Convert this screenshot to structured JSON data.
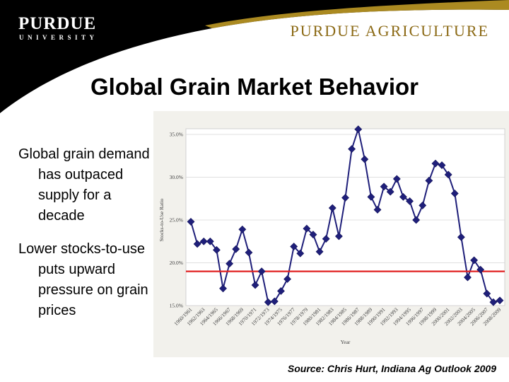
{
  "header": {
    "logo_main": "PURDUE",
    "logo_sub": "UNIVERSITY",
    "ag_title": "PURDUE AGRICULTURE",
    "swoosh_color": "#000000",
    "accent_color": "#c9a227"
  },
  "title": "Global Grain Market Behavior",
  "bullets": [
    "Global grain demand has outpaced supply for a decade",
    "Lower stocks-to-use puts upward pressure on grain prices"
  ],
  "source": "Source: Chris Hurt, Indiana Ag Outlook 2009",
  "chart_data": {
    "type": "line",
    "xlabel": "Year",
    "ylabel": "Stocks-to-Use Ratio",
    "ylim": [
      15,
      35
    ],
    "yticks": [
      "15.0%",
      "20.0%",
      "25.0%",
      "30.0%",
      "35.0%"
    ],
    "ytick_values": [
      15,
      20,
      25,
      30,
      35
    ],
    "categories": [
      "1960/1961",
      "1961/1962",
      "1962/1963",
      "1963/1964",
      "1964/1965",
      "1965/1966",
      "1966/1967",
      "1967/1968",
      "1968/1969",
      "1969/1970",
      "1970/1971",
      "1971/1972",
      "1972/1973",
      "1973/1974",
      "1974/1975",
      "1975/1976",
      "1976/1977",
      "1977/1978",
      "1978/1979",
      "1979/1980",
      "1980/1981",
      "1981/1982",
      "1982/1983",
      "1983/1984",
      "1984/1985",
      "1985/1986",
      "1986/1987",
      "1987/1988",
      "1988/1989",
      "1989/1990",
      "1990/1991",
      "1991/1992",
      "1992/1993",
      "1993/1994",
      "1994/1995",
      "1995/1996",
      "1996/1997",
      "1997/1998",
      "1998/1999",
      "1999/2000",
      "2000/2001",
      "2001/2002",
      "2002/2003",
      "2003/2004",
      "2004/2005",
      "2005/2006",
      "2006/2007",
      "2007/2008",
      "2008/2009"
    ],
    "tick_labels": [
      "1960/1961",
      "1962/1963",
      "1964/1965",
      "1966/1967",
      "1968/1969",
      "1970/1971",
      "1972/1973",
      "1974/1975",
      "1976/1977",
      "1978/1979",
      "1980/1981",
      "1982/1983",
      "1984/1985",
      "1986/1987",
      "1988/1989",
      "1990/1991",
      "1992/1993",
      "1994/1995",
      "1996/1997",
      "1998/1999",
      "2000/2001",
      "2002/2003",
      "2004/2005",
      "2006/2007",
      "2008/2009"
    ],
    "series": [
      {
        "values": [
          24.8,
          22.2,
          22.5,
          22.5,
          21.5,
          17.0,
          19.9,
          21.6,
          23.9,
          21.2,
          17.4,
          19.0,
          15.4,
          15.5,
          16.7,
          18.1,
          21.9,
          21.1,
          24.0,
          23.3,
          21.3,
          22.8,
          26.4,
          23.1,
          27.6,
          33.3,
          35.6,
          32.1,
          27.7,
          26.2,
          28.9,
          28.3,
          29.8,
          27.7,
          27.2,
          25.0,
          26.7,
          29.6,
          31.6,
          31.4,
          30.3,
          28.1,
          23.0,
          18.3,
          20.3,
          19.2,
          16.4,
          15.4,
          15.6
        ],
        "color": "#1f1f7a"
      }
    ],
    "reference_line": {
      "value": 19.0,
      "color": "#e02020"
    },
    "grid": true
  }
}
